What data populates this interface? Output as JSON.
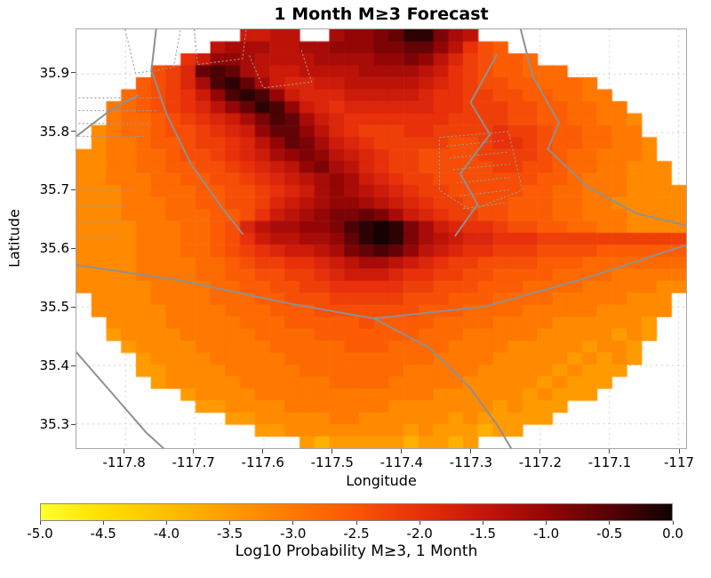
{
  "title": "1 Month M≥3 Forecast",
  "axes": {
    "x_label": "Longitude",
    "y_label": "Latitude",
    "x_ticks": [
      -117.8,
      -117.7,
      -117.6,
      -117.5,
      -117.4,
      -117.3,
      -117.2,
      -117.1,
      -117.0
    ],
    "x_tick_labels": [
      "-117.8",
      "-117.7",
      "-117.6",
      "-117.5",
      "-117.4",
      "-117.3",
      "-117.2",
      "-117.1",
      "-117"
    ],
    "y_ticks": [
      35.9,
      35.8,
      35.7,
      35.6,
      35.5,
      35.4,
      35.3
    ],
    "y_tick_labels": [
      "35.9",
      "35.8",
      "35.7",
      "35.6",
      "35.5",
      "35.4",
      "35.3"
    ]
  },
  "colorbar": {
    "label": "Log10 Probability M≥3, 1 Month",
    "tick_labels": [
      "-5.0",
      "-4.5",
      "-4.0",
      "-3.5",
      "-3.0",
      "-2.5",
      "-2.0",
      "-1.5",
      "-1.0",
      "-0.5",
      "0.0"
    ],
    "min": -5,
    "max": 0,
    "stops": [
      [
        0,
        [
          255,
          255,
          45
        ]
      ],
      [
        0.1,
        [
          255,
          222,
          0
        ]
      ],
      [
        0.2,
        [
          255,
          190,
          0
        ]
      ],
      [
        0.3,
        [
          255,
          155,
          0
        ]
      ],
      [
        0.4,
        [
          255,
          120,
          0
        ]
      ],
      [
        0.5,
        [
          250,
          85,
          5
        ]
      ],
      [
        0.6,
        [
          232,
          48,
          10
        ]
      ],
      [
        0.7,
        [
          198,
          22,
          10
        ]
      ],
      [
        0.8,
        [
          148,
          6,
          6
        ]
      ],
      [
        0.9,
        [
          88,
          2,
          6
        ]
      ],
      [
        1,
        [
          16,
          2,
          2
        ]
      ]
    ]
  },
  "chart_data": {
    "type": "heatmap",
    "title": "1 Month M≥3 Forecast",
    "xlabel": "Longitude",
    "ylabel": "Latitude",
    "legend": "colorbar bottom: Log10 Probability M≥3, 1 Month",
    "x_range": [
      -117.87,
      -116.9885
    ],
    "y_range": [
      35.25775,
      35.97525
    ],
    "nx": 41,
    "ny": 35,
    "cell_deg": [
      0.0215,
      0.0205
    ],
    "value_scale": "log10 probability of M>=3 in 1 month",
    "value_range": [
      -5,
      0
    ],
    "code_values": {
      "y": -3.8,
      "a": -3.5,
      "b": -3.25,
      "c": -3.0,
      "d": -2.8,
      "e": -2.6,
      "f": -2.4,
      "g": -2.2,
      "h": -2.0,
      "i": -1.8,
      "j": -1.6,
      "k": -1.4,
      "l": -1.2,
      "m": -1.0,
      "n": -0.8,
      "o": -0.6,
      "p": -0.4,
      "q": -0.2,
      "r": -0.05
    },
    "grid_rows": [
      "...........jjkk..lmmnoqqnlk..............",
      ".........klllkkllmmmnnoomkhfe............",
      ".......hjmmlkkkkllllmmnmkigfeed..........",
      ".....fgiopolkjjkkkkllllkjhgfeeddd........",
      "....efgilpqoljiijjkkkkkjihgffeedddc......",
      "...defghjmpqpmjiiijjjjjihhggffeeddcc.....",
      "..cdefghikmoqpmjihiiiiiihhgggffeeddcc....",
      "..cddefghijlnpoljihhhhhhhggggffeeddccb...",
      ".bcddeffghijmoomkihggghhgggghggfeeddcc...",
      ".bccdeefgghikmonljihgggggffghhgfeeddccb..",
      "bbccddeffghijlmnmkjihggffffggggfeddcccb..",
      "bbccddeeffghijkmnlkihggfffffggffeddccbbb.",
      "bbcccddeeffghijklmljihggfffffffeedcccbbb.",
      "bbbccdddeeffghijlmlkjihggfffffeeddcccbbbb",
      "bbbcccddeeffgijklmmlkjihggfffeeeddccbbbbb",
      "bbbcccdddeefhjklmnnonljihggffeeeddcccbbbb",
      "bbbbcccddefikllmmnpqrqnljihhgffeeddccbbbb",
      "bbbbcccddefhjkkllmoqrqnlkjiihhhgggggggggg",
      "bbbbcccddefghijjklnopomkjihhgggffffeeeeee",
      "bbbbccccddefgghhijkllkjihggffffeeeddddddd",
      "bbbbccccddeeffgghijjjihhggffeeeeddddccccc",
      "bbbbbccccddeeffgghhhhhggfffeeeddddcccccbb",
      ".bbbbccccdddeefffgggggfffeeeddddcccccbbb.",
      ".bbbbbccccdddeeefffffffeeeddddcccccbbbbb.",
      "..bbbbcccccdddeeeeefeeeeddddccccbbbbbba..",
      "..abbbbcccccddddeeeeeeedddcccccbbbbbaba..",
      "...abbbbcccccdddddeeeddddccccbbbbbabba...",
      "....abbbbcccccddddddddddccccbbbbbababa...",
      "....aabbbbcccccdddddddcccccbbbbbabaaa....",
      ".....abbbbbccccccddddcccccbbbbbabaaa.....",
      ".......abbbbccccccccccccbbbbbbabaaa......",
      "........aabbbbcccccccbbbbbbbabaaa........",
      "..........aabbbbbccbbbbbbabaaaaa.........",
      "............aabbbbbbbbabaaayaa...........",
      "...............ayaaaaayaaya.............."
    ],
    "fault_lines": [
      [
        [
          -117.755,
          35.978
        ],
        [
          -117.762,
          35.905
        ],
        [
          -117.74,
          35.83
        ],
        [
          -117.705,
          35.745
        ],
        [
          -117.66,
          35.67
        ],
        [
          -117.63,
          35.625
        ]
      ],
      [
        [
          -117.873,
          35.79
        ],
        [
          -117.82,
          35.838
        ],
        [
          -117.782,
          35.862
        ]
      ],
      [
        [
          -117.873,
          35.572
        ],
        [
          -117.72,
          35.545
        ],
        [
          -117.56,
          35.505
        ],
        [
          -117.44,
          35.48
        ],
        [
          -117.28,
          35.5
        ],
        [
          -117.13,
          35.55
        ],
        [
          -116.99,
          35.605
        ]
      ],
      [
        [
          -117.44,
          35.48
        ],
        [
          -117.36,
          35.43
        ],
        [
          -117.3,
          35.36
        ],
        [
          -117.26,
          35.295
        ],
        [
          -117.235,
          35.245
        ]
      ],
      [
        [
          -117.228,
          35.978
        ],
        [
          -117.21,
          35.895
        ],
        [
          -117.172,
          35.815
        ],
        [
          -117.188,
          35.77
        ],
        [
          -117.13,
          35.705
        ],
        [
          -117.06,
          35.66
        ],
        [
          -116.99,
          35.64
        ]
      ],
      [
        [
          -117.262,
          35.932
        ],
        [
          -117.3,
          35.85
        ],
        [
          -117.272,
          35.795
        ],
        [
          -117.315,
          35.728
        ],
        [
          -117.29,
          35.675
        ],
        [
          -117.322,
          35.622
        ]
      ],
      [
        [
          -117.873,
          35.425
        ],
        [
          -117.825,
          35.36
        ],
        [
          -117.77,
          35.285
        ],
        [
          -117.745,
          35.258
        ]
      ]
    ],
    "dotted_lines": [
      [
        [
          -117.873,
          35.858
        ],
        [
          -117.75,
          35.858
        ]
      ],
      [
        [
          -117.873,
          35.836
        ],
        [
          -117.755,
          35.836
        ]
      ],
      [
        [
          -117.873,
          35.814
        ],
        [
          -117.76,
          35.814
        ]
      ],
      [
        [
          -117.873,
          35.792
        ],
        [
          -117.77,
          35.792
        ]
      ],
      [
        [
          -117.873,
          35.7
        ],
        [
          -117.79,
          35.7
        ]
      ],
      [
        [
          -117.873,
          35.672
        ],
        [
          -117.8,
          35.672
        ]
      ],
      [
        [
          -117.873,
          35.645
        ],
        [
          -117.805,
          35.645
        ]
      ],
      [
        [
          -117.873,
          35.62
        ],
        [
          -117.81,
          35.62
        ]
      ],
      [
        [
          -117.8,
          35.975
        ],
        [
          -117.785,
          35.9
        ],
        [
          -117.73,
          35.91
        ],
        [
          -117.72,
          35.975
        ]
      ],
      [
        [
          -117.7,
          35.975
        ],
        [
          -117.695,
          35.915
        ],
        [
          -117.63,
          35.925
        ],
        [
          -117.625,
          35.975
        ]
      ],
      [
        [
          -117.62,
          35.93
        ],
        [
          -117.6,
          35.875
        ],
        [
          -117.53,
          35.885
        ],
        [
          -117.545,
          35.94
        ]
      ],
      [
        [
          -117.345,
          35.79
        ],
        [
          -117.245,
          35.8
        ],
        [
          -117.225,
          35.7
        ],
        [
          -117.3,
          35.665
        ],
        [
          -117.345,
          35.7
        ],
        [
          -117.345,
          35.79
        ]
      ],
      [
        [
          -117.335,
          35.775
        ],
        [
          -117.25,
          35.785
        ]
      ],
      [
        [
          -117.33,
          35.755
        ],
        [
          -117.245,
          35.765
        ]
      ],
      [
        [
          -117.325,
          35.735
        ],
        [
          -117.24,
          35.745
        ]
      ],
      [
        [
          -117.32,
          35.712
        ],
        [
          -117.24,
          35.722
        ]
      ],
      [
        [
          -117.315,
          35.69
        ],
        [
          -117.245,
          35.7
        ]
      ],
      [
        [
          -117.31,
          35.668
        ],
        [
          -117.25,
          35.678
        ]
      ]
    ]
  }
}
